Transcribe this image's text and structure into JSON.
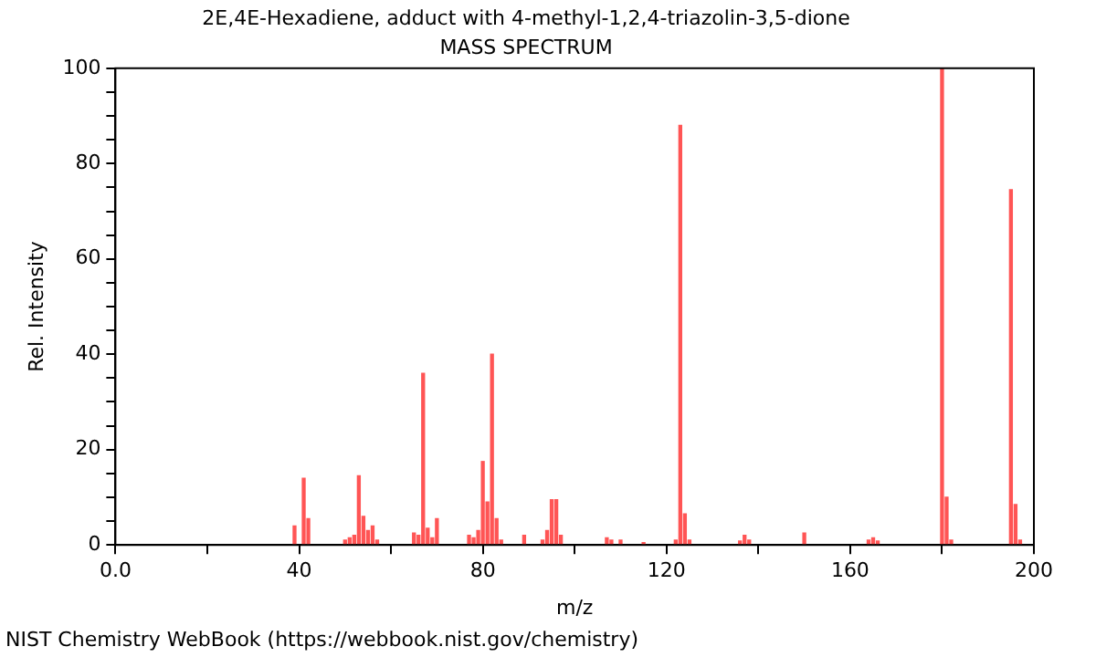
{
  "chart_data": {
    "type": "bar",
    "title": "2E,4E-Hexadiene, adduct with 4-methyl-1,2,4-triazolin-3,5-dione",
    "subtitle": "MASS SPECTRUM",
    "xlabel": "m/z",
    "ylabel": "Rel. Intensity",
    "x": [
      39,
      41,
      42,
      50,
      51,
      52,
      53,
      54,
      55,
      56,
      57,
      65,
      66,
      67,
      68,
      69,
      70,
      77,
      78,
      79,
      80,
      81,
      82,
      83,
      84,
      89,
      93,
      94,
      95,
      96,
      97,
      107,
      108,
      110,
      115,
      122,
      123,
      124,
      125,
      136,
      137,
      138,
      150,
      164,
      165,
      166,
      180,
      181,
      182,
      195,
      196,
      197
    ],
    "values": [
      4,
      14,
      5.5,
      1,
      1.5,
      2,
      14.5,
      6,
      3,
      4,
      1,
      2.5,
      2,
      36,
      3.5,
      1.5,
      5.5,
      2,
      1.5,
      3,
      17.5,
      9,
      40,
      5.5,
      1,
      2,
      1,
      3,
      9.5,
      9.5,
      2,
      1.5,
      1,
      1,
      0.5,
      1,
      88,
      6.5,
      1,
      0.8,
      2,
      1,
      2.5,
      1,
      1.5,
      0.8,
      100,
      10,
      1,
      74.5,
      8.5,
      1
    ],
    "color": "#ff5555",
    "xlim": [
      0,
      200
    ],
    "xticks": [
      {
        "value": 0,
        "label": "0.0"
      },
      {
        "value": 20,
        "label": null
      },
      40,
      {
        "value": 60,
        "label": null
      },
      80,
      {
        "value": 100,
        "label": null
      },
      120,
      {
        "value": 140,
        "label": null
      },
      160,
      {
        "value": 180,
        "label": null
      },
      200
    ],
    "ylim": [
      0,
      100
    ],
    "yticks": [
      0,
      {
        "value": 5,
        "label": null
      },
      {
        "value": 10,
        "label": null
      },
      {
        "value": 15,
        "label": null
      },
      20,
      {
        "value": 25,
        "label": null
      },
      {
        "value": 30,
        "label": null
      },
      {
        "value": 35,
        "label": null
      },
      40,
      {
        "value": 45,
        "label": null
      },
      {
        "value": 50,
        "label": null
      },
      {
        "value": 55,
        "label": null
      },
      60,
      {
        "value": 65,
        "label": null
      },
      {
        "value": 70,
        "label": null
      },
      {
        "value": 75,
        "label": null
      },
      80,
      {
        "value": 85,
        "label": null
      },
      {
        "value": 90,
        "label": null
      },
      {
        "value": 95,
        "label": null
      },
      100
    ],
    "grid": false,
    "legend": false,
    "annotations": [
      "NIST Chemistry WebBook (https://webbook.nist.gov/chemistry)"
    ]
  }
}
